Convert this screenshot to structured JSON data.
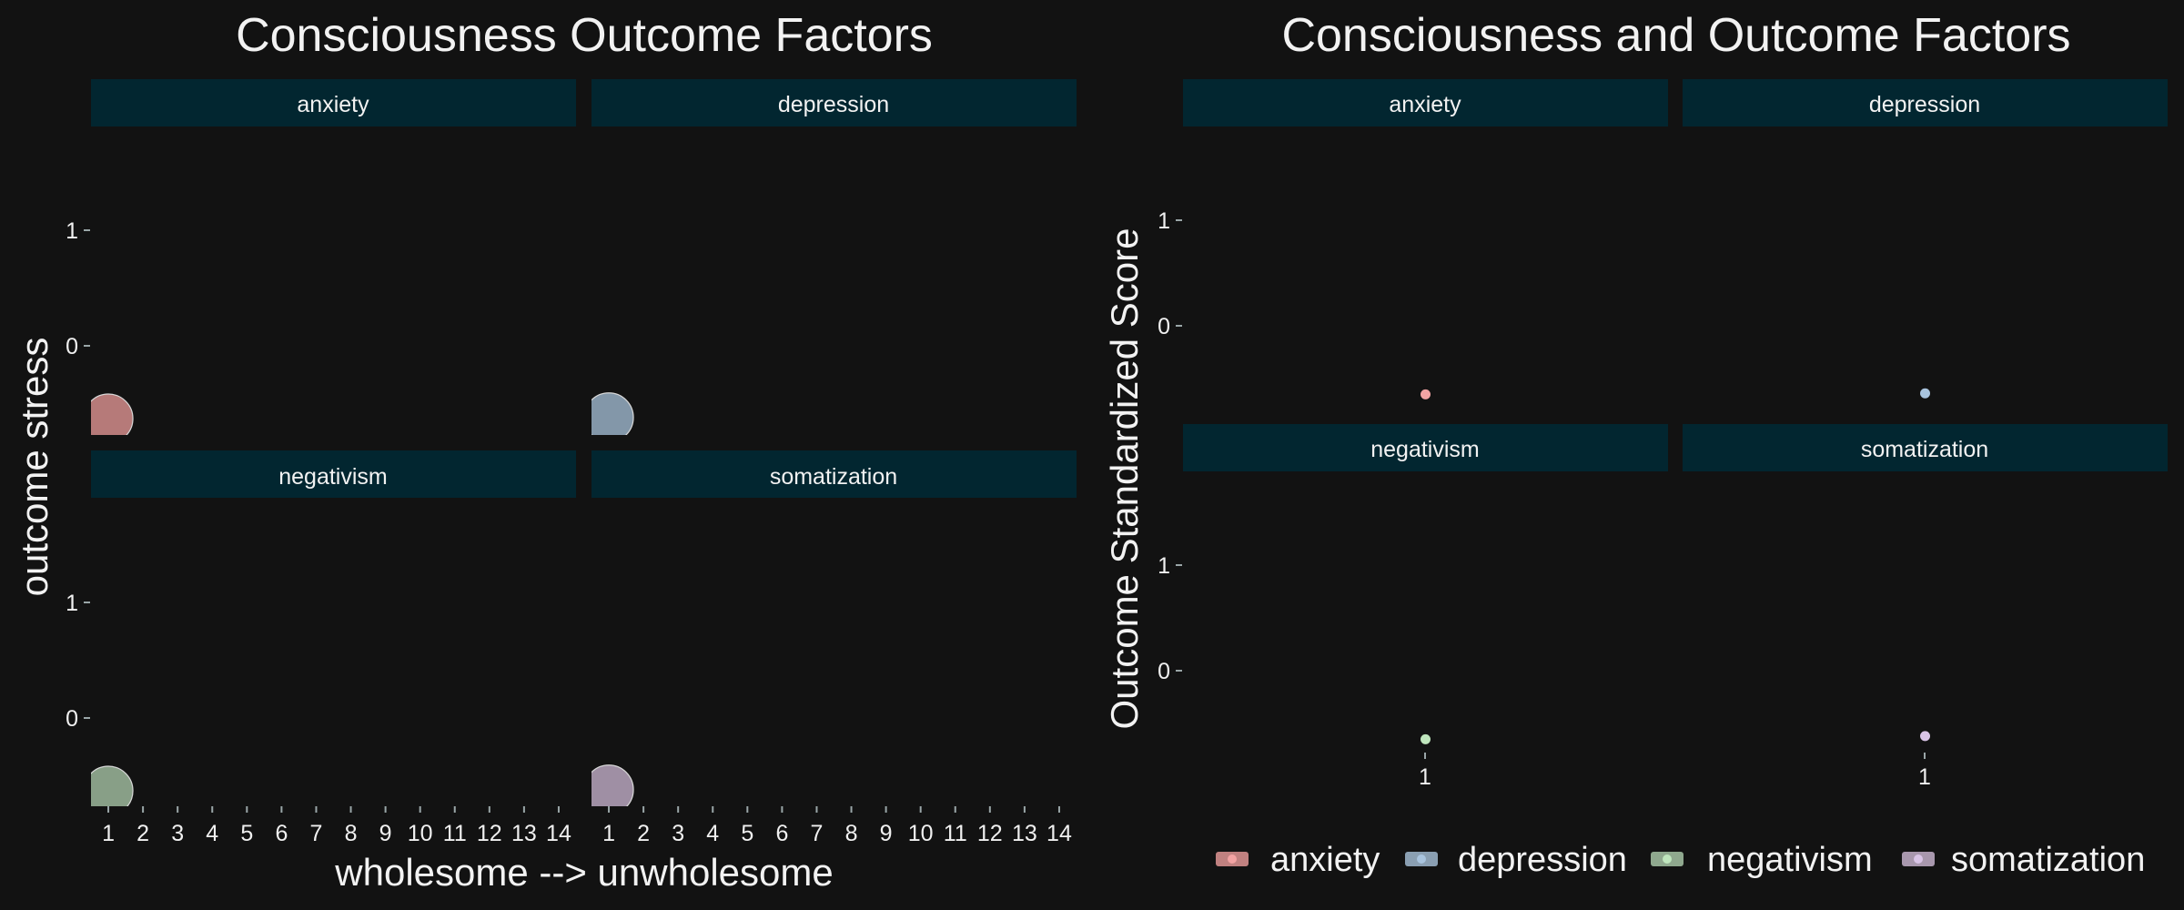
{
  "colors": {
    "background": "#121212",
    "strip": "#022630",
    "text": "#f2f2f2",
    "tick": "#9aa6a8"
  },
  "chart_data": [
    {
      "type": "scatter",
      "title": "Consciousness Outcome Factors",
      "xlabel": "wholesome --> unwholesome",
      "ylabel": "outcome stress",
      "facets": [
        "anxiety",
        "depression",
        "negativism",
        "somatization"
      ],
      "facet_layout": "2x2",
      "x_ticks": [
        "1",
        "2",
        "3",
        "4",
        "5",
        "6",
        "7",
        "8",
        "9",
        "10",
        "11",
        "12",
        "13",
        "14"
      ],
      "xlim": [
        0.5,
        14.5
      ],
      "y_ticks": [
        "1",
        "0"
      ],
      "ylim": [
        -0.8,
        1.7
      ],
      "series": [
        {
          "facet": "anxiety",
          "color": "#c08180",
          "points": [
            {
              "x": 1,
              "y": -0.63
            }
          ]
        },
        {
          "facet": "depression",
          "color": "#8a9fb2",
          "points": [
            {
              "x": 1,
              "y": -0.62
            }
          ]
        },
        {
          "facet": "negativism",
          "color": "#8fa88e",
          "points": [
            {
              "x": 1,
              "y": -0.63
            }
          ]
        },
        {
          "facet": "somatization",
          "color": "#a897ad",
          "points": [
            {
              "x": 1,
              "y": -0.62
            }
          ]
        }
      ],
      "grid": false,
      "legend": "none"
    },
    {
      "type": "scatter",
      "title": "Consciousness and Outcome Factors",
      "xlabel": "",
      "ylabel": "Outcome Standardized Score",
      "facets": [
        "anxiety",
        "depression",
        "negativism",
        "somatization"
      ],
      "facet_layout": "2x2",
      "x_ticks": [
        "1"
      ],
      "xlim": [
        0.5,
        1.5
      ],
      "y_ticks": [
        "1",
        "0"
      ],
      "ylim": [
        -0.85,
        1.85
      ],
      "series": [
        {
          "facet": "anxiety",
          "color": "#f2a3a3",
          "points": [
            {
              "x": 1,
              "y": -0.65
            }
          ]
        },
        {
          "facet": "depression",
          "color": "#a9c4de",
          "points": [
            {
              "x": 1,
              "y": -0.64
            }
          ]
        },
        {
          "facet": "negativism",
          "color": "#bfe6bd",
          "points": [
            {
              "x": 1,
              "y": -0.65
            }
          ]
        },
        {
          "facet": "somatization",
          "color": "#d9c4e6",
          "points": [
            {
              "x": 1,
              "y": -0.62
            }
          ]
        }
      ],
      "grid": false,
      "legend": "bottom",
      "legend_entries": [
        {
          "label": "anxiety",
          "color": "#f2a3a3"
        },
        {
          "label": "depression",
          "color": "#a9c4de"
        },
        {
          "label": "negativism",
          "color": "#bfe6bd"
        },
        {
          "label": "somatization",
          "color": "#d9c4e6"
        }
      ]
    }
  ]
}
